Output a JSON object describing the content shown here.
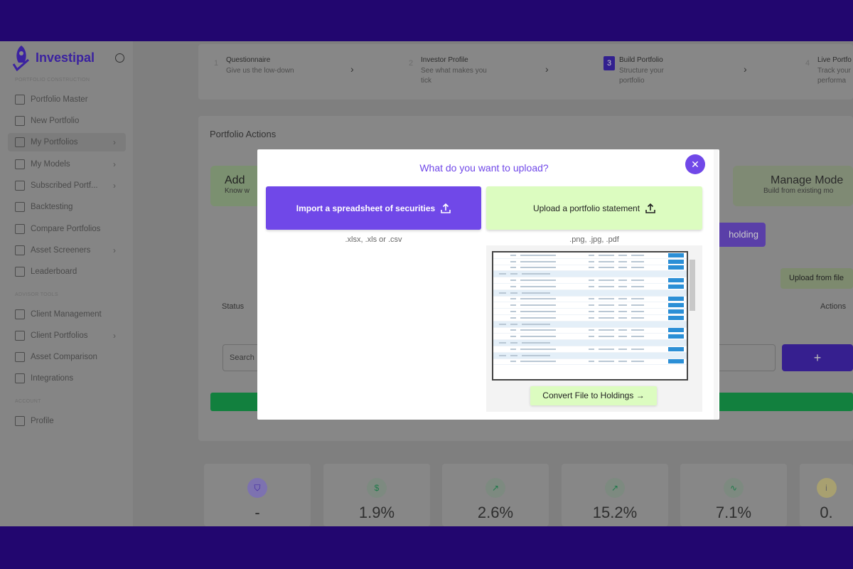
{
  "app": {
    "name": "Investipal"
  },
  "sidebar": {
    "sections": [
      {
        "title": "PORTFOLIO CONSTRUCTION",
        "items": [
          {
            "label": "Portfolio Master",
            "icon": "grid-icon"
          },
          {
            "label": "New Portfolio",
            "icon": "plus-square-icon"
          },
          {
            "label": "My Portfolios",
            "icon": "pie-chart-icon",
            "chevron": true,
            "active": true
          },
          {
            "label": "My Models",
            "icon": "code-icon",
            "chevron": true
          },
          {
            "label": "Subscribed Portf...",
            "icon": "folder-icon",
            "chevron": true
          },
          {
            "label": "Backtesting",
            "icon": "skip-back-icon"
          },
          {
            "label": "Compare Portfolios",
            "icon": "columns-icon"
          },
          {
            "label": "Asset Screeners",
            "icon": "layers-icon",
            "chevron": true
          },
          {
            "label": "Leaderboard",
            "icon": "award-icon"
          }
        ]
      },
      {
        "title": "ADVISOR TOOLS",
        "items": [
          {
            "label": "Client Management",
            "icon": "users-icon"
          },
          {
            "label": "Client Portfolios",
            "icon": "briefcase-icon",
            "chevron": true
          },
          {
            "label": "Asset Comparison",
            "icon": "bar-chart-icon"
          },
          {
            "label": "Integrations",
            "icon": "link-icon"
          }
        ]
      },
      {
        "title": "ACCOUNT",
        "items": [
          {
            "label": "Profile",
            "icon": "user-icon"
          }
        ]
      }
    ]
  },
  "steps": [
    {
      "num": "1",
      "title": "Questionnaire",
      "sub": "Give us the low-down"
    },
    {
      "num": "2",
      "title": "Investor Profile",
      "sub": "See what makes you tick"
    },
    {
      "num": "3",
      "title": "Build Portfolio",
      "sub": "Structure your portfolio",
      "current": true
    },
    {
      "num": "4",
      "title": "Live Portfo",
      "sub": "Track your performa"
    }
  ],
  "actions": {
    "title": "Portfolio Actions",
    "add_card": {
      "title": "Add",
      "sub": "Know w"
    },
    "manage_card": {
      "title": "Manage Mode",
      "sub": "Build from existing mo"
    },
    "holding_button": "holding",
    "upload_file_button": "Upload from file",
    "status_header": "Status",
    "actions_header": "Actions",
    "search_placeholder": "Search",
    "add_button": "+"
  },
  "stats": [
    {
      "value": "-",
      "icon": "shield-icon"
    },
    {
      "value": "1.9%",
      "icon": "dollar-icon"
    },
    {
      "value": "2.6%",
      "icon": "trending-up-icon"
    },
    {
      "value": "15.2%",
      "icon": "trending-up-icon"
    },
    {
      "value": "7.1%",
      "icon": "activity-icon"
    },
    {
      "value": "0.",
      "icon": "info-icon"
    }
  ],
  "modal": {
    "title": "What do you want to upload?",
    "close": "✕",
    "spreadsheet_button": "Import a spreadsheet of securities",
    "spreadsheet_formats": ".xlsx, .xls or .csv",
    "statement_button": "Upload a portfolio statement",
    "statement_formats": ".png, .jpg, .pdf",
    "convert_button": "Convert File to Holdings →"
  },
  "colors": {
    "accent": "#7048e8",
    "light_green": "#dcfcc0",
    "band": "#22066f"
  }
}
